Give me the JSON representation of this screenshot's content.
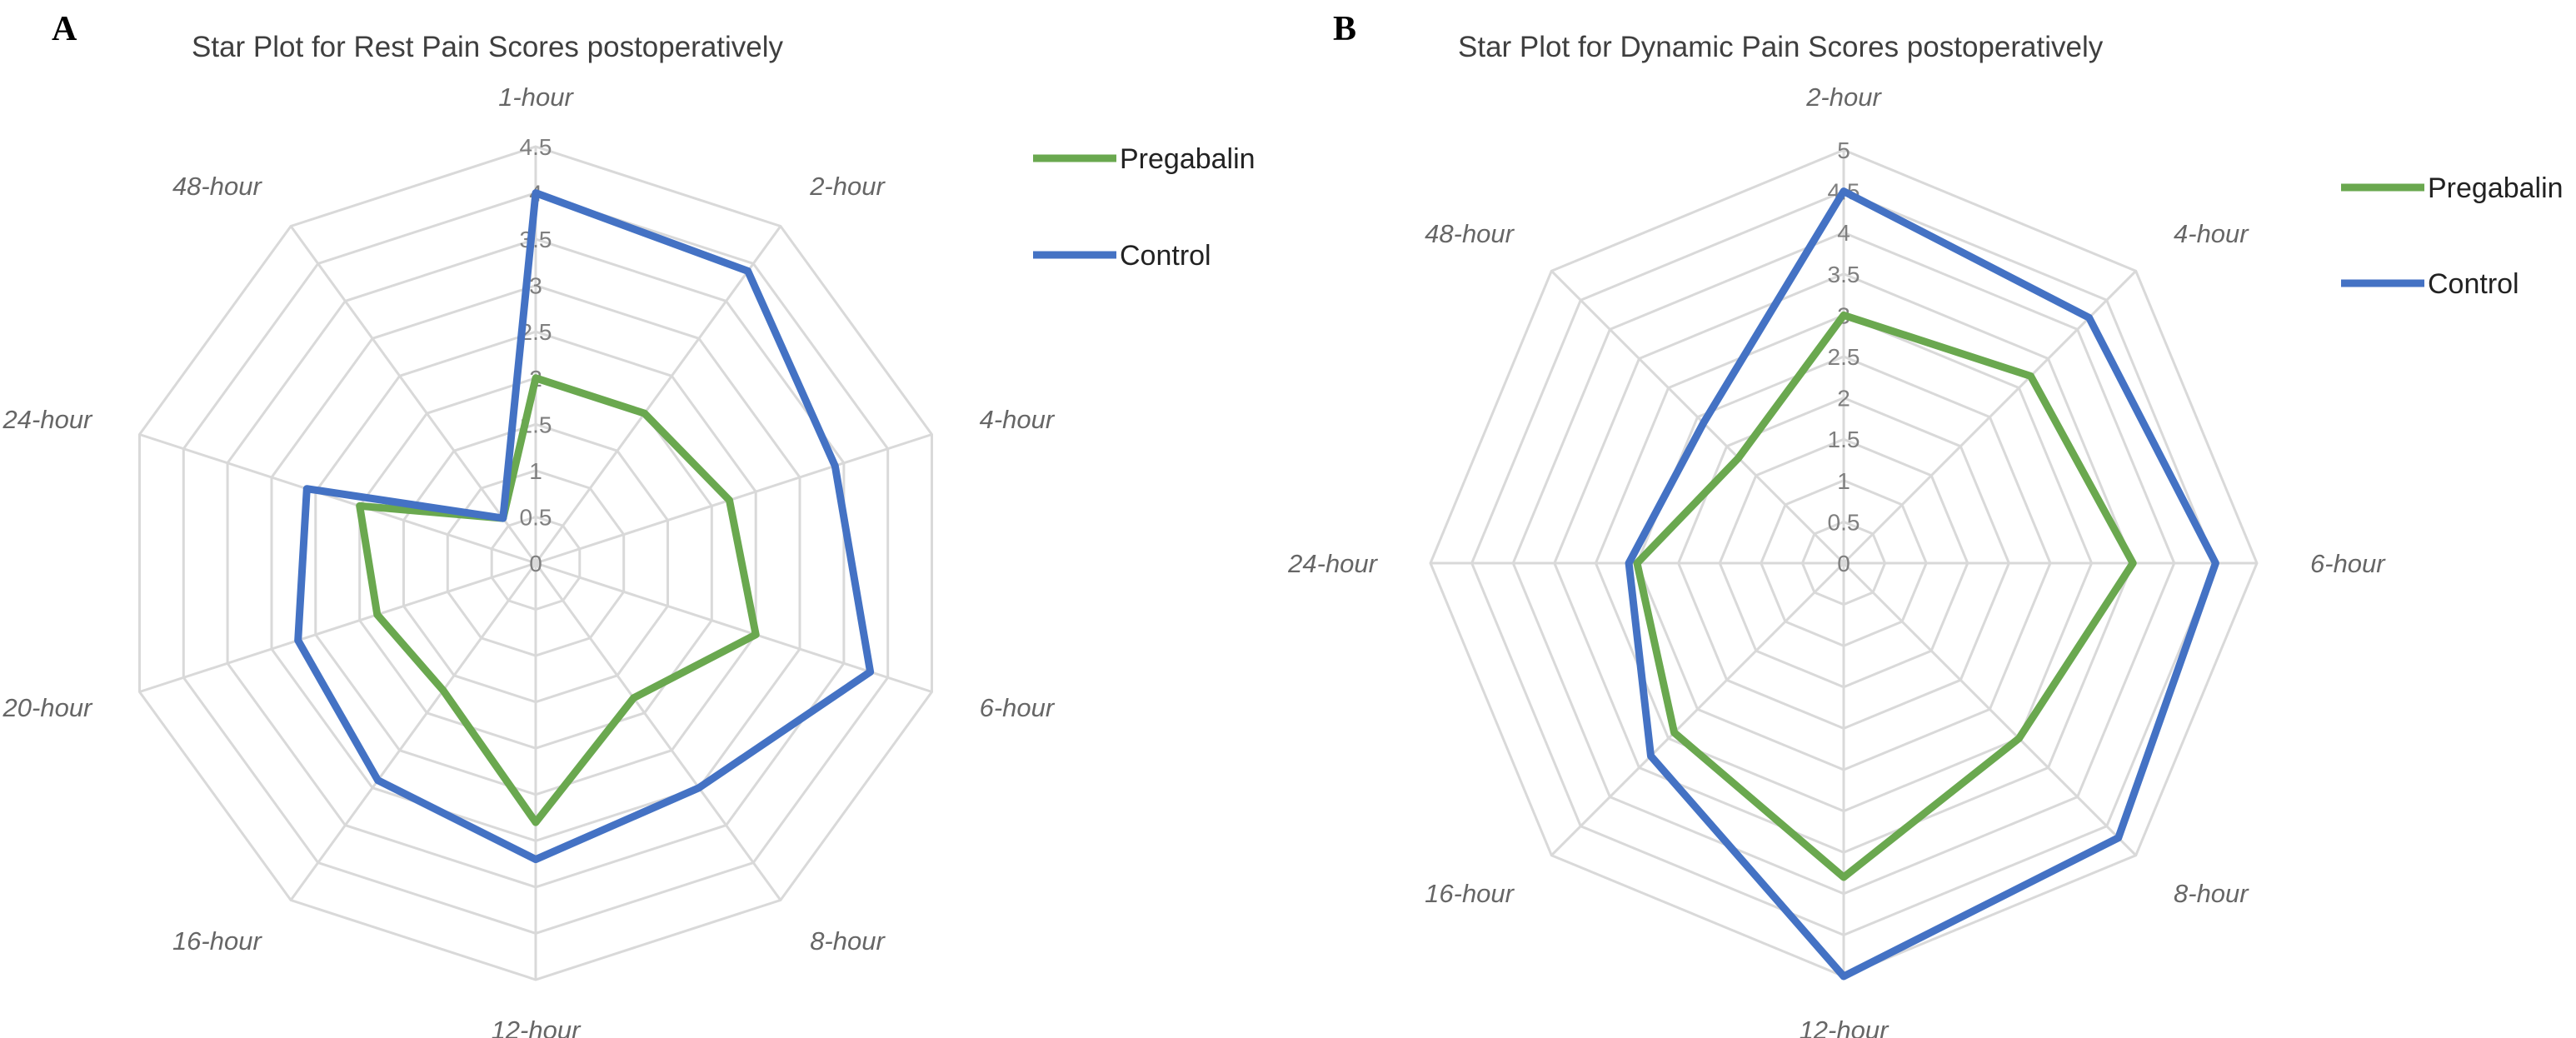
{
  "colors": {
    "pregabalin": "#6aa84f",
    "control": "#4472c4"
  },
  "chart_data": [
    {
      "type": "radar",
      "panel": "A",
      "title": "Star Plot for Rest Pain Scores postoperatively",
      "categories": [
        "1-hour",
        "2-hour",
        "4-hour",
        "6-hour",
        "8-hour",
        "12-hour",
        "16-hour",
        "20-hour",
        "24-hour",
        "48-hour"
      ],
      "axis_ticks": [
        "0",
        "0.5",
        "1",
        "1.5",
        "2",
        "2.5",
        "3",
        "3.5",
        "4",
        "4.5"
      ],
      "rmax": 4.5,
      "series": [
        {
          "name": "Pregabalin",
          "color": "#6aa84f",
          "values": [
            2.0,
            2.0,
            2.2,
            2.5,
            1.8,
            2.8,
            1.7,
            1.8,
            2.0,
            0.6
          ]
        },
        {
          "name": "Control",
          "color": "#4472c4",
          "values": [
            4.0,
            3.9,
            3.4,
            3.8,
            3.0,
            3.2,
            2.9,
            2.7,
            2.6,
            0.6
          ]
        }
      ],
      "legend": [
        "Pregabalin",
        "Control"
      ],
      "legend_position": "top-right"
    },
    {
      "type": "radar",
      "panel": "B",
      "title": "Star Plot for Dynamic Pain Scores postoperatively",
      "categories": [
        "2-hour",
        "4-hour",
        "6-hour",
        "8-hour",
        "12-hour",
        "16-hour",
        "24-hour",
        "48-hour"
      ],
      "axis_ticks": [
        "0",
        "0.5",
        "1",
        "1.5",
        "2",
        "2.5",
        "3",
        "3.5",
        "4",
        "4.5",
        "5"
      ],
      "rmax": 5,
      "series": [
        {
          "name": "Pregabalin",
          "color": "#6aa84f",
          "values": [
            3.0,
            3.2,
            3.5,
            3.0,
            3.8,
            2.9,
            2.5,
            1.8
          ]
        },
        {
          "name": "Control",
          "color": "#4472c4",
          "values": [
            4.5,
            4.2,
            4.5,
            4.7,
            5.0,
            3.3,
            2.6,
            2.4
          ]
        }
      ],
      "legend": [
        "Pregabalin",
        "Control"
      ],
      "legend_position": "top-right"
    }
  ]
}
